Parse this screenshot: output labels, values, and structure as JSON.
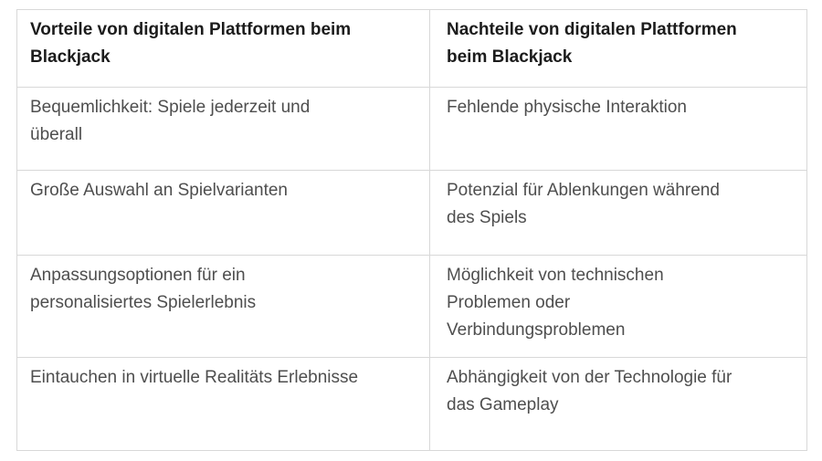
{
  "colors": {
    "page_background": "#ffffff",
    "border_color": "#d8d8d8",
    "header_text_color": "#1c1c1c",
    "body_text_color": "#4e4e4e"
  },
  "table": {
    "headers": [
      "Vorteile von digitalen Plattformen beim\nBlackjack",
      "Nachteile von digitalen Plattformen\nbeim Blackjack"
    ],
    "rows": [
      {
        "left": "Bequemlichkeit: Spiele jederzeit und\nüberall",
        "right": "Fehlende physische Interaktion"
      },
      {
        "left": "Große Auswahl an Spielvarianten",
        "right": "Potenzial für Ablenkungen während\ndes Spiels"
      },
      {
        "left": "Anpassungsoptionen für ein\npersonalisiertes Spielerlebnis",
        "right": "Möglichkeit von technischen\nProblemen oder\nVerbindungsproblemen"
      },
      {
        "left": "Eintauchen in virtuelle Realitäts Erlebnisse",
        "right": "Abhängigkeit von der Technologie für\ndas Gameplay"
      }
    ]
  }
}
